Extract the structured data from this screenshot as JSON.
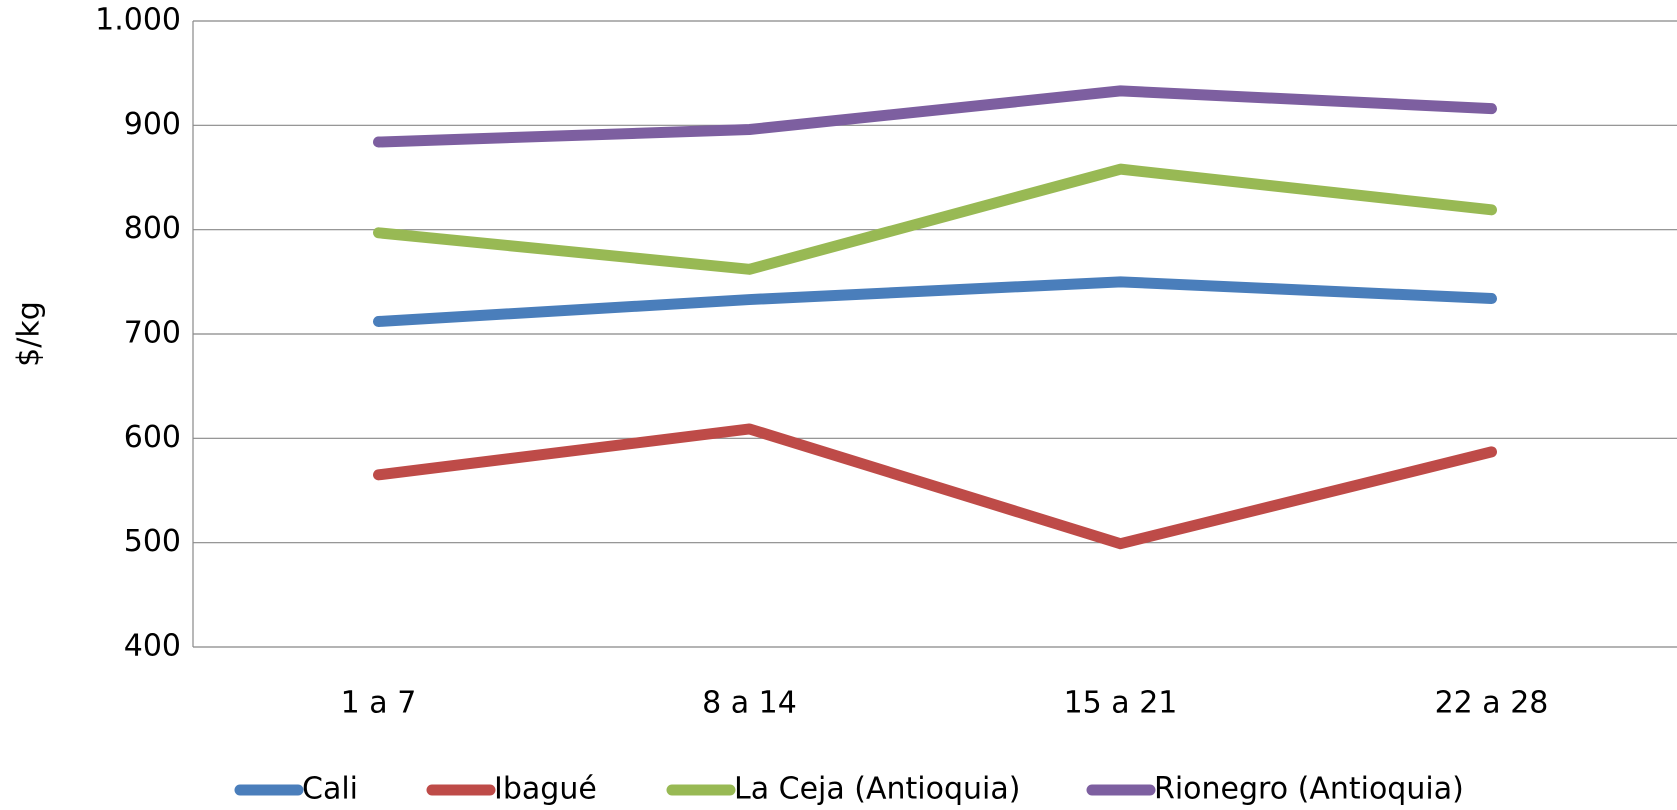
{
  "chart_data": {
    "type": "line",
    "y_label": "$/kg",
    "categories": [
      "1 a 7",
      "8 a 14",
      "15 a 21",
      "22 a 28"
    ],
    "series": [
      {
        "name": "Cali",
        "color": "#4a7ebb",
        "values": [
          712,
          733,
          750,
          734
        ]
      },
      {
        "name": "Ibagué",
        "color": "#be4b48",
        "values": [
          565,
          609,
          499,
          587
        ]
      },
      {
        "name": "La Ceja (Antioquia)",
        "color": "#98b954",
        "values": [
          797,
          762,
          858,
          819
        ]
      },
      {
        "name": "Rionegro (Antioquia)",
        "color": "#7d5fa0",
        "values": [
          884,
          896,
          933,
          916
        ]
      }
    ],
    "ylim": [
      400,
      1000
    ],
    "yticks": [
      400,
      500,
      600,
      700,
      800,
      900,
      {
        "value": 1000,
        "label": "1.000"
      }
    ],
    "grid": true,
    "legend": "bottom"
  }
}
